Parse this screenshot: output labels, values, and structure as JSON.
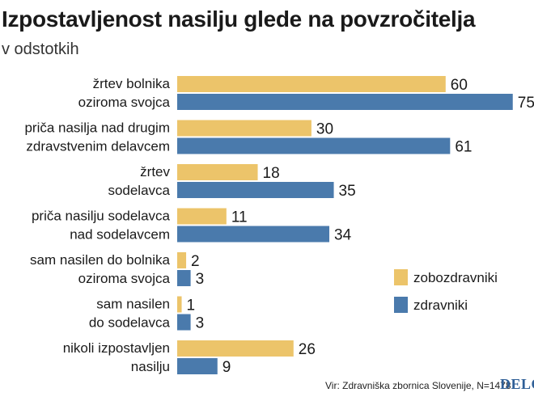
{
  "chart_data": {
    "type": "bar",
    "orientation": "horizontal",
    "title": "Izpostavljenost nasilju glede na povzročitelja",
    "subtitle": "v odstotkih",
    "categories": [
      [
        "žrtev bolnika",
        "oziroma svojca"
      ],
      [
        "priča nasilja nad drugim",
        "zdravstvenim delavcem"
      ],
      [
        "žrtev",
        "sodelavca"
      ],
      [
        "priča nasilju sodelavca",
        "nad sodelavcem"
      ],
      [
        "sam nasilen do bolnika",
        "oziroma svojca"
      ],
      [
        "sam nasilen",
        "do sodelavca"
      ],
      [
        "nikoli izpostavljen",
        "nasilju"
      ]
    ],
    "series": [
      {
        "name": "zobozdravniki",
        "color": "#ecc46a",
        "values": [
          60,
          30,
          18,
          11,
          2,
          1,
          26
        ]
      },
      {
        "name": "zdravniki",
        "color": "#4a7aac",
        "values": [
          75,
          61,
          35,
          34,
          3,
          3,
          9
        ]
      }
    ],
    "legend_position": "right",
    "grid": false,
    "xlim": [
      0,
      75
    ]
  },
  "footer": {
    "source": "Vir: Zdravniška zbornica Slovenije, N=1478",
    "logo": "DELO"
  }
}
